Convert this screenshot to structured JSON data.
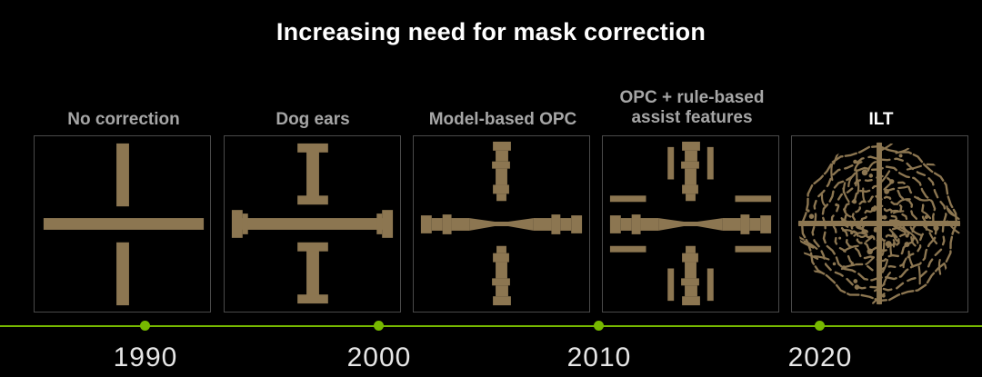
{
  "title": "Increasing need for mask correction",
  "colors": {
    "background": "#000000",
    "mask_feature": "#8c7651",
    "timeline": "#77b900",
    "label_muted": "#a6a6a6",
    "label_highlight": "#ffffff"
  },
  "stages": [
    {
      "label": "No correction",
      "highlight": false
    },
    {
      "label": "Dog ears",
      "highlight": false
    },
    {
      "label": "Model-based OPC",
      "highlight": false
    },
    {
      "label_line1": "OPC + rule-based",
      "label_line2": "assist features",
      "highlight": false
    },
    {
      "label": "ILT",
      "highlight": true
    }
  ],
  "timeline": {
    "years": [
      "1990",
      "2000",
      "2010",
      "2020"
    ]
  }
}
